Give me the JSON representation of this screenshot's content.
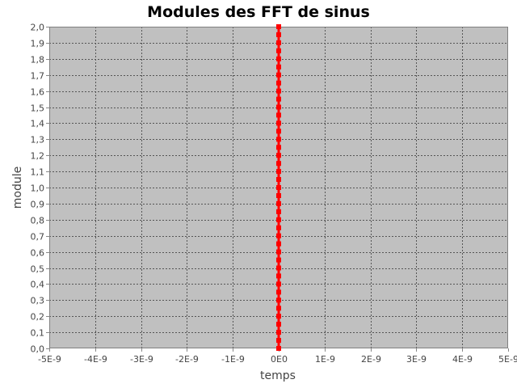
{
  "chart_data": {
    "type": "line",
    "title": "Modules des FFT de sinus",
    "xlabel": "temps",
    "ylabel": "module",
    "xlim": [
      -5e-09,
      5e-09
    ],
    "ylim": [
      0,
      2.0
    ],
    "x_ticks": [
      {
        "value": -5e-09,
        "label": "-5E-9"
      },
      {
        "value": -4e-09,
        "label": "-4E-9"
      },
      {
        "value": -3e-09,
        "label": "-3E-9"
      },
      {
        "value": -2e-09,
        "label": "-2E-9"
      },
      {
        "value": -1e-09,
        "label": "-1E-9"
      },
      {
        "value": 0,
        "label": "0E0"
      },
      {
        "value": 1e-09,
        "label": "1E-9"
      },
      {
        "value": 2e-09,
        "label": "2E-9"
      },
      {
        "value": 3e-09,
        "label": "3E-9"
      },
      {
        "value": 4e-09,
        "label": "4E-9"
      },
      {
        "value": 5e-09,
        "label": "5E-9"
      }
    ],
    "y_ticks": [
      {
        "value": 0.0,
        "label": "0,0"
      },
      {
        "value": 0.1,
        "label": "0,1"
      },
      {
        "value": 0.2,
        "label": "0,2"
      },
      {
        "value": 0.3,
        "label": "0,3"
      },
      {
        "value": 0.4,
        "label": "0,4"
      },
      {
        "value": 0.5,
        "label": "0,5"
      },
      {
        "value": 0.6,
        "label": "0,6"
      },
      {
        "value": 0.7,
        "label": "0,7"
      },
      {
        "value": 0.8,
        "label": "0,8"
      },
      {
        "value": 0.9,
        "label": "0,9"
      },
      {
        "value": 1.0,
        "label": "1,0"
      },
      {
        "value": 1.1,
        "label": "1,1"
      },
      {
        "value": 1.2,
        "label": "1,2"
      },
      {
        "value": 1.3,
        "label": "1,3"
      },
      {
        "value": 1.4,
        "label": "1,4"
      },
      {
        "value": 1.5,
        "label": "1,5"
      },
      {
        "value": 1.6,
        "label": "1,6"
      },
      {
        "value": 1.7,
        "label": "1,7"
      },
      {
        "value": 1.8,
        "label": "1,8"
      },
      {
        "value": 1.9,
        "label": "1,9"
      },
      {
        "value": 2.0,
        "label": "2,0"
      }
    ],
    "grid": true,
    "colors": {
      "plot_background": "#c0c0c0",
      "gridline": "#555555",
      "series": "#ff0000"
    },
    "series": [
      {
        "x": [
          0,
          0,
          0,
          0,
          0,
          0,
          0,
          0,
          0,
          0,
          0,
          0,
          0,
          0,
          0,
          0,
          0,
          0,
          0,
          0,
          0,
          0,
          0,
          0,
          0,
          0,
          0,
          0,
          0,
          0,
          0,
          0,
          0,
          0,
          0,
          0,
          0,
          0,
          0,
          0,
          0
        ],
        "y": [
          0.0,
          0.05,
          0.1,
          0.15,
          0.2,
          0.25,
          0.3,
          0.35,
          0.4,
          0.45,
          0.5,
          0.55,
          0.6,
          0.65,
          0.7,
          0.75,
          0.8,
          0.85,
          0.9,
          0.95,
          1.0,
          1.05,
          1.1,
          1.15,
          1.2,
          1.25,
          1.3,
          1.35,
          1.4,
          1.45,
          1.5,
          1.55,
          1.6,
          1.65,
          1.7,
          1.75,
          1.8,
          1.85,
          1.9,
          1.95,
          2.0
        ]
      }
    ]
  }
}
